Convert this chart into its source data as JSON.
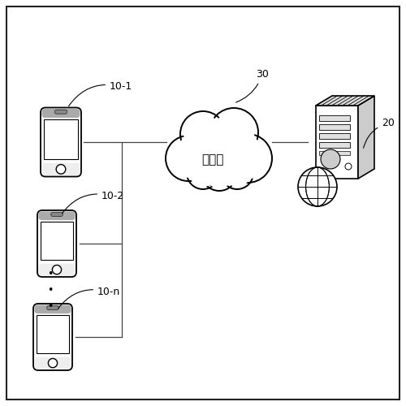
{
  "bg_color": "#ffffff",
  "border_color": "#222222",
  "line_color": "#444444",
  "cloud_text": "통신망",
  "label_10_1": "10-1",
  "label_10_2": "10-2",
  "label_10_n": "10-n",
  "label_20": "20",
  "label_30": "30",
  "figsize": [
    5.0,
    5.0
  ],
  "dpi": 100
}
